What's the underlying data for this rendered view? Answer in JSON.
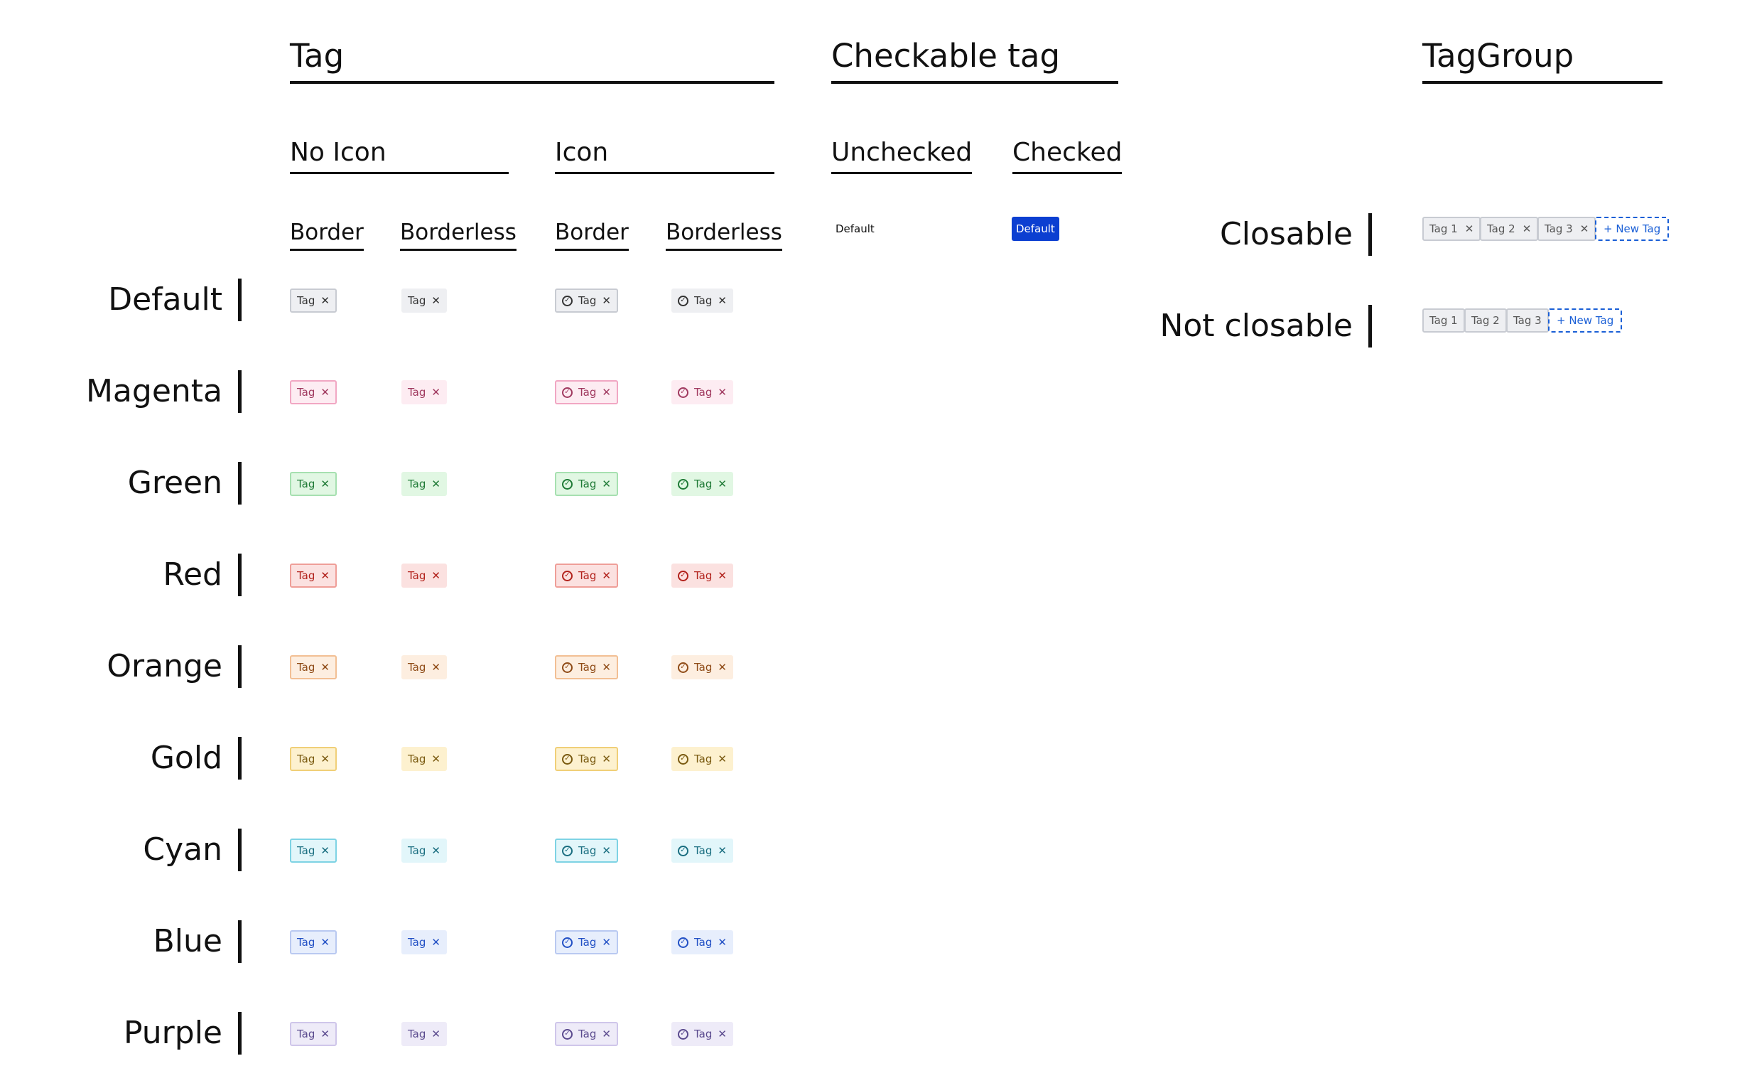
{
  "headings": {
    "tag": "Tag",
    "checkable": "Checkable tag",
    "taggroup": "TagGroup",
    "no_icon": "No Icon",
    "icon": "Icon",
    "unchecked": "Unchecked",
    "checked": "Checked",
    "border_1": "Border",
    "borderless_1": "Borderless",
    "border_2": "Border",
    "borderless_2": "Borderless"
  },
  "rows": [
    {
      "label": "Default",
      "text": "#333333",
      "bg": "#eeeff2",
      "border": "#c8cbd2"
    },
    {
      "label": "Magenta",
      "text": "#a0395f",
      "bg": "#fdecf2",
      "border": "#f1a7c3"
    },
    {
      "label": "Green",
      "text": "#1f7a36",
      "bg": "#e1f7e3",
      "border": "#a6e0b0"
    },
    {
      "label": "Red",
      "text": "#b2221c",
      "bg": "#fbe1e0",
      "border": "#ef9e98"
    },
    {
      "label": "Orange",
      "text": "#8f4b17",
      "bg": "#fdeee0",
      "border": "#f2bf94"
    },
    {
      "label": "Gold",
      "text": "#7a5a10",
      "bg": "#fdf1cf",
      "border": "#f0cf78"
    },
    {
      "label": "Cyan",
      "text": "#1a6e80",
      "bg": "#e2f6fa",
      "border": "#7ed3e4"
    },
    {
      "label": "Blue",
      "text": "#2250c5",
      "bg": "#e7eefc",
      "border": "#b9c9f1"
    },
    {
      "label": "Purple",
      "text": "#5a4a8e",
      "bg": "#eeebf8",
      "border": "#cfc6ea"
    }
  ],
  "tag_label": "Tag",
  "close_glyph": "✕",
  "checkable": {
    "unchecked_label": "Default",
    "checked_label": "Default",
    "checked_color": "#0c3fd1"
  },
  "taggroup": {
    "closable_label": "Closable",
    "not_closable_label": "Not closable",
    "tags": [
      "Tag 1",
      "Tag 2",
      "Tag 3"
    ],
    "new_tag": "+ New Tag"
  }
}
